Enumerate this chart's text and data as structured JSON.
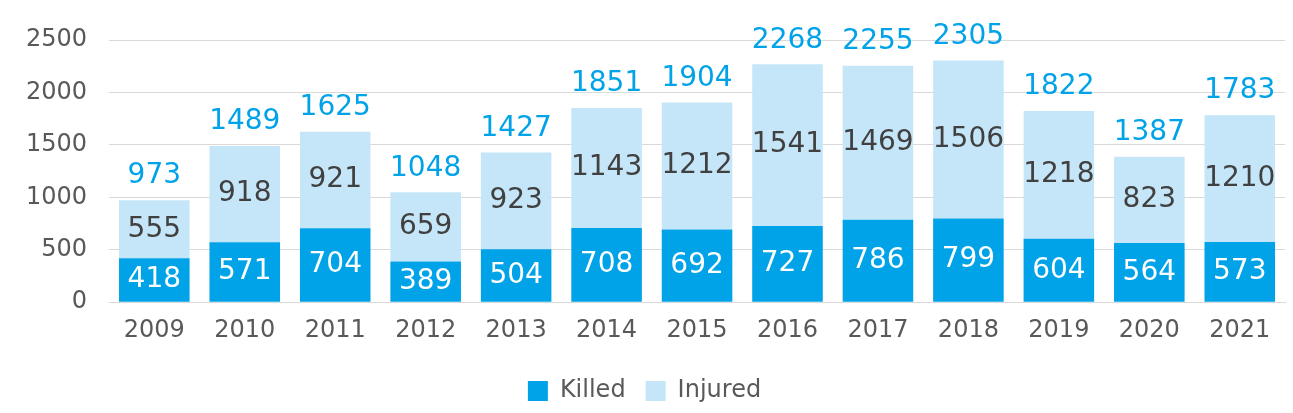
{
  "chart_data": {
    "type": "bar",
    "stacked": true,
    "categories": [
      "2009",
      "2010",
      "2011",
      "2012",
      "2013",
      "2014",
      "2015",
      "2016",
      "2017",
      "2018",
      "2019",
      "2020",
      "2021"
    ],
    "series": [
      {
        "name": "Killed",
        "color": "#00a2e8",
        "values": [
          418,
          571,
          704,
          389,
          504,
          708,
          692,
          727,
          786,
          799,
          604,
          564,
          573
        ]
      },
      {
        "name": "Injured",
        "color": "#c5e6f8",
        "values": [
          555,
          918,
          921,
          659,
          923,
          1143,
          1212,
          1541,
          1469,
          1506,
          1218,
          823,
          1210
        ]
      }
    ],
    "totals": [
      "973",
      "1489",
      "1625",
      "1048",
      "1427",
      "1851",
      "1904",
      "2268",
      "2255",
      "2305",
      "1822",
      "1387",
      "1783"
    ],
    "ylim": [
      0,
      2500
    ],
    "yticks": [
      0,
      500,
      1000,
      1500,
      2000,
      2500
    ],
    "grid": "y",
    "legend": "bottom",
    "data_labels": true
  }
}
